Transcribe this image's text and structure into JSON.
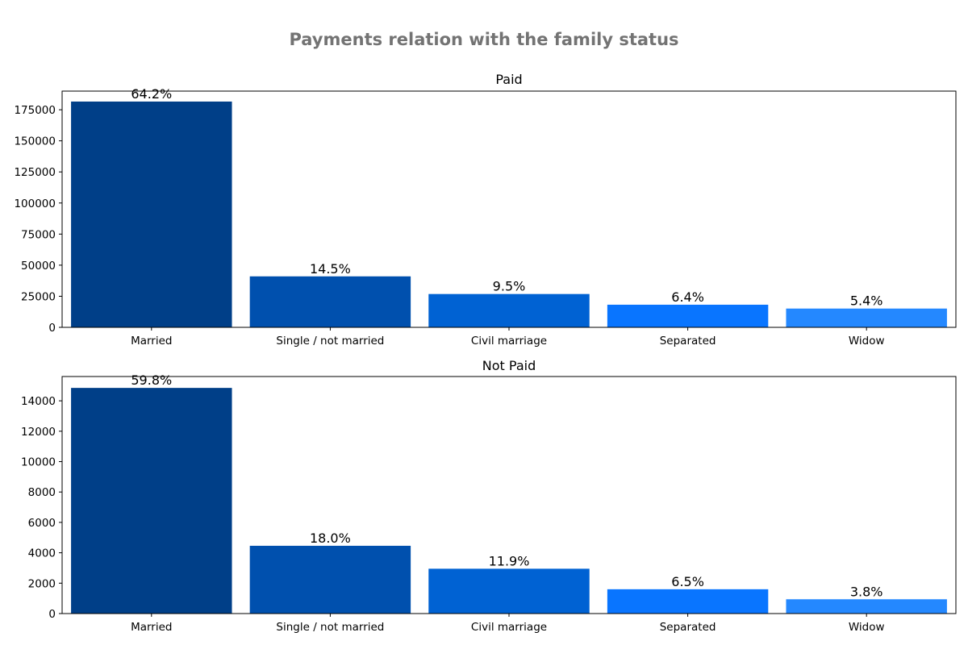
{
  "figure_title": "Payments relation with the family status",
  "colors": [
    "#003f88",
    "#0050ae",
    "#0062d3",
    "#0975ff",
    "#2488ff"
  ],
  "chart_data": [
    {
      "type": "bar",
      "title": "Paid",
      "categories": [
        "Married",
        "Single / not married",
        "Civil marriage",
        "Separated",
        "Widow"
      ],
      "values": [
        181600,
        41000,
        26800,
        18200,
        15100
      ],
      "labels": [
        "64.2%",
        "14.5%",
        "9.5%",
        "6.4%",
        "5.4%"
      ],
      "ylim": [
        0,
        190000
      ],
      "yticks": [
        0,
        25000,
        50000,
        75000,
        100000,
        125000,
        150000,
        175000
      ],
      "ytick_labels": [
        "0",
        "25000",
        "50000",
        "75000",
        "100000",
        "125000",
        "150000",
        "175000"
      ],
      "grid": false
    },
    {
      "type": "bar",
      "title": "Not Paid",
      "categories": [
        "Married",
        "Single / not married",
        "Civil marriage",
        "Separated",
        "Widow"
      ],
      "values": [
        14850,
        4460,
        2950,
        1600,
        940
      ],
      "labels": [
        "59.8%",
        "18.0%",
        "11.9%",
        "6.5%",
        "3.8%"
      ],
      "ylim": [
        0,
        15600
      ],
      "yticks": [
        0,
        2000,
        4000,
        6000,
        8000,
        10000,
        12000,
        14000
      ],
      "ytick_labels": [
        "0",
        "2000",
        "4000",
        "6000",
        "8000",
        "10000",
        "12000",
        "14000"
      ],
      "grid": false
    }
  ]
}
